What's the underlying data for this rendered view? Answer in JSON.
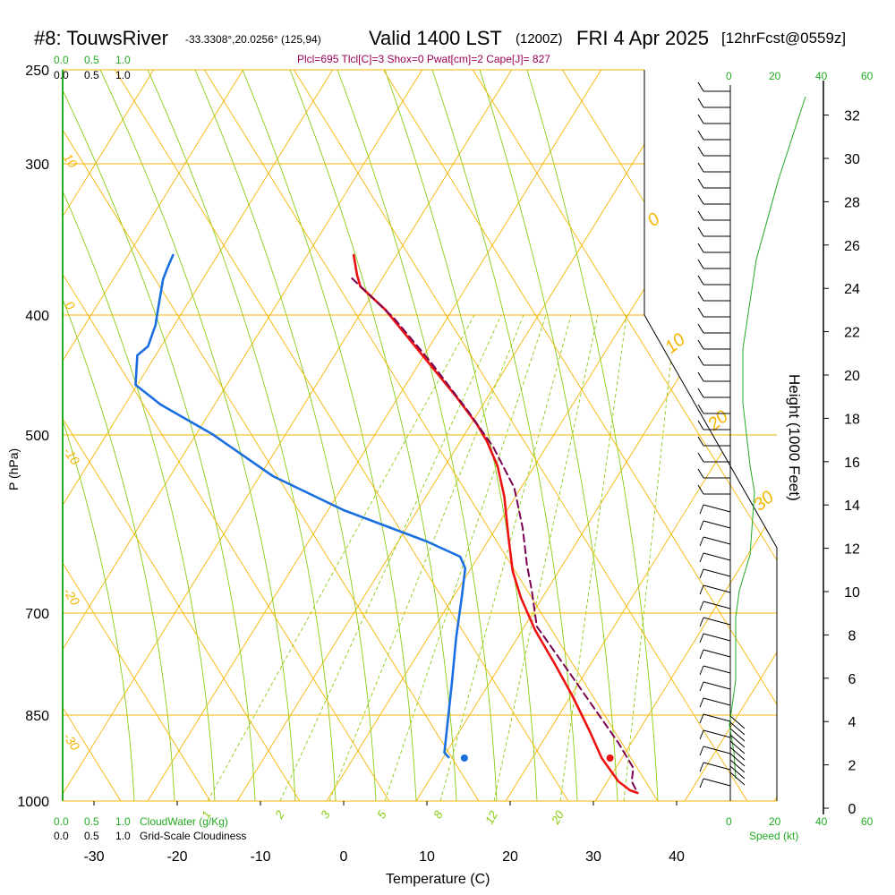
{
  "title": {
    "station": "#8: TouwsRiver",
    "coords": "-33.3308°,20.0256° (125,94)",
    "valid": "Valid 1400 LST",
    "utc": "(1200Z)",
    "date": "FRI 4 Apr 2025",
    "forecast": "[12hrFcst@0559z]"
  },
  "stats_line": "Plcl=695 Tlcl[C]=3 Shox=0 Pwat[cm]=2 Cape[J]= 827",
  "colors": {
    "temperature": "#ee1111",
    "dewpoint": "#1a6fe0",
    "parcel": "#7a0050",
    "isobar_isotherm": "#f5b500",
    "mixing_ratio": "#88cc11",
    "scale_green": "#22aa22",
    "stats": "#990055"
  },
  "chart_data": {
    "type": "line",
    "xlabel": "Temperature (C)",
    "ylabel": "P (hPa)",
    "ylabel_right": "Height (1000 Feet)",
    "x_ticks": [
      "-30",
      "-20",
      "-10",
      "0",
      "10",
      "20",
      "30",
      "40"
    ],
    "p_ticks": [
      "250",
      "300",
      "400",
      "500",
      "700",
      "850",
      "1000"
    ],
    "height_ticks": [
      "0",
      "2",
      "4",
      "6",
      "8",
      "10",
      "12",
      "14",
      "16",
      "18",
      "20",
      "22",
      "24",
      "26",
      "28",
      "30",
      "32"
    ],
    "cloud_scale_top": [
      "0.0",
      "0.5",
      "1.0"
    ],
    "cloud_scale_top2": [
      "0.0",
      "0.5",
      "1.0"
    ],
    "cloud_scale_bottom": [
      "0.0",
      "0.5",
      "1.0"
    ],
    "cloud_scale_bottom2": [
      "0.0",
      "0.5",
      "1.0"
    ],
    "cloudwater_label": "CloudWater (g/Kg)",
    "cloudiness_label": "Grid-Scale Cloudiness",
    "speed_ticks_top_green": [
      "0",
      "20",
      "40",
      "60"
    ],
    "speed_ticks_bottom_green": [
      "0",
      "20",
      "40",
      "60"
    ],
    "speed_label": "Speed (kt)",
    "isotherm_labels_left": [
      "10",
      "0",
      "-10",
      "-20",
      "-30"
    ],
    "isotherm_labels_right": [
      "0",
      "10",
      "20",
      "30"
    ],
    "mixing_ratio_labels": [
      "1",
      "2",
      "3",
      "5",
      "8",
      "12",
      "20"
    ],
    "series": [
      {
        "name": "",
        "kind": "temperature",
        "points": [
          [
            1.2,
            285
          ],
          [
            1.6,
            307
          ],
          [
            2.0,
            320
          ],
          [
            5.0,
            346
          ],
          [
            8.5,
            386
          ],
          [
            13.5,
            443
          ],
          [
            16.0,
            474
          ],
          [
            17.2,
            493
          ],
          [
            18.5,
            521
          ],
          [
            19.3,
            555
          ],
          [
            19.8,
            600
          ],
          [
            20.3,
            638
          ],
          [
            21.3,
            668
          ],
          [
            23.0,
            704
          ],
          [
            25.5,
            744
          ],
          [
            27.5,
            778
          ],
          [
            29.5,
            816
          ],
          [
            31.0,
            847
          ],
          [
            33.0,
            873
          ],
          [
            34.4,
            883
          ],
          [
            35.3,
            886
          ]
        ]
      },
      {
        "name": "",
        "kind": "dewpoint",
        "points": [
          [
            -20.5,
            285
          ],
          [
            -21.2,
            300
          ],
          [
            -21.7,
            312
          ],
          [
            -22.3,
            345
          ],
          [
            -22.6,
            363
          ],
          [
            -23.5,
            387
          ],
          [
            -24.8,
            397
          ],
          [
            -25.0,
            430
          ],
          [
            -22.0,
            452
          ],
          [
            -15.8,
            485
          ],
          [
            -8.5,
            532
          ],
          [
            0.0,
            570
          ],
          [
            10.0,
            605
          ],
          [
            14.0,
            622
          ],
          [
            14.6,
            635
          ],
          [
            14.2,
            666
          ],
          [
            13.5,
            713
          ],
          [
            13.0,
            763
          ],
          [
            12.4,
            815
          ],
          [
            12.1,
            841
          ],
          [
            12.6,
            846
          ]
        ]
      },
      {
        "name": "",
        "kind": "parcel",
        "points": [
          [
            1.0,
            311
          ],
          [
            6.0,
            355
          ],
          [
            10.5,
            405
          ],
          [
            15.0,
            460
          ],
          [
            18.0,
            500
          ],
          [
            20.5,
            545
          ],
          [
            21.5,
            590
          ],
          [
            22.0,
            630
          ],
          [
            22.6,
            660
          ],
          [
            23.2,
            700
          ],
          [
            27.0,
            750
          ],
          [
            30.0,
            790
          ],
          [
            33.0,
            830
          ],
          [
            34.8,
            858
          ],
          [
            34.6,
            873
          ],
          [
            35.3,
            886
          ]
        ]
      }
    ],
    "surface_points": [
      {
        "kind": "temperature",
        "value": 32,
        "p": 1000
      },
      {
        "kind": "dewpoint",
        "value": 14.5,
        "p": 1000
      }
    ],
    "wind_profile": [
      [
        3,
        70
      ],
      [
        5,
        75
      ],
      [
        8,
        80
      ],
      [
        10,
        80
      ],
      [
        13,
        80
      ],
      [
        16,
        90
      ],
      [
        19,
        95
      ],
      [
        22,
        95
      ],
      [
        24,
        95
      ],
      [
        26,
        100
      ],
      [
        28,
        105
      ],
      [
        30,
        110
      ],
      [
        32,
        110
      ],
      [
        34,
        110
      ],
      [
        36,
        120
      ],
      [
        37,
        130
      ],
      [
        40,
        145
      ],
      [
        43,
        160
      ],
      [
        45,
        175
      ],
      [
        50,
        190
      ],
      [
        55,
        205
      ],
      [
        60,
        220
      ],
      [
        62,
        240
      ],
      [
        62,
        260
      ],
      [
        60,
        290
      ],
      [
        57,
        320
      ],
      [
        55,
        350
      ],
      [
        50,
        380
      ],
      [
        44,
        410
      ],
      [
        40,
        450
      ],
      [
        38,
        500
      ],
      [
        37,
        560
      ],
      [
        38,
        610
      ],
      [
        39,
        650
      ],
      [
        38,
        690
      ],
      [
        37,
        715
      ],
      [
        37,
        760
      ],
      [
        37,
        810
      ]
    ]
  }
}
